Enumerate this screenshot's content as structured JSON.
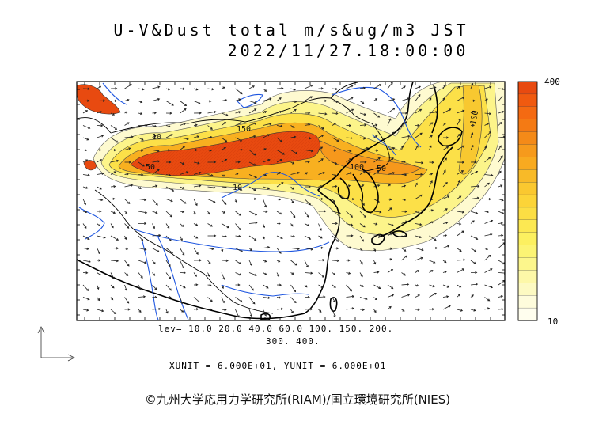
{
  "header": {
    "title": "U-V&Dust total m/s&ug/m3 JST",
    "datetime": "2022/11/27.18:00:00"
  },
  "colorbar": {
    "max_label": "400",
    "min_label": "10",
    "colors": [
      "#e84a10",
      "#f05a10",
      "#f46a12",
      "#f47a14",
      "#f48a18",
      "#f69a1c",
      "#f8aa20",
      "#f8ba28",
      "#fac830",
      "#fcd438",
      "#fcde44",
      "#fce852",
      "#fcf060",
      "#fcf474",
      "#fcf68c",
      "#fdf8a8",
      "#fdfac2",
      "#fefcdc",
      "#fffeee"
    ]
  },
  "legend": {
    "levels_line1": "lev= 10.0 20.0 40.0 60.0 100. 150. 200.",
    "levels_line2": "300. 400.",
    "units": "XUNIT = 6.000E+01, YUNIT = 6.000E+01"
  },
  "contour_labels": [
    "150",
    "10",
    "10",
    "50",
    "100",
    "50",
    "100"
  ],
  "credit": "©九州大学応用力学研究所(RIAM)/国立環境研究所(NIES)"
}
